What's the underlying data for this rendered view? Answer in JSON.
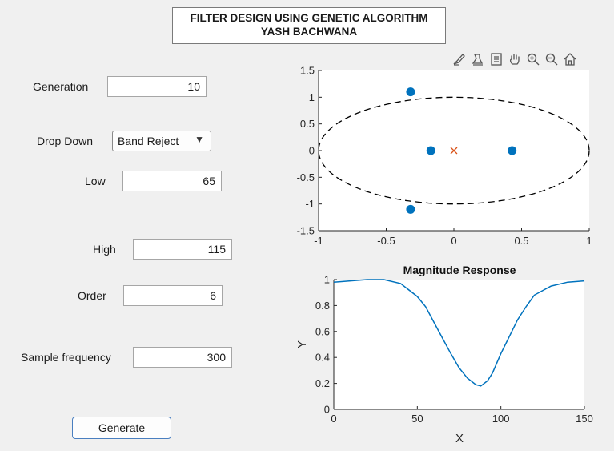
{
  "title": {
    "line1": "FILTER DESIGN USING GENETIC ALGORITHM",
    "line2": "YASH BACHWANA"
  },
  "form": {
    "generation_label": "Generation",
    "generation_value": "10",
    "dropdown_label": "Drop Down",
    "dropdown_value": "Band Reject",
    "low_label": "Low",
    "low_value": "65",
    "high_label": "High",
    "high_value": "115",
    "order_label": "Order",
    "order_value": "6",
    "fs_label": "Sample frequency",
    "fs_value": "300",
    "generate_label": "Generate"
  },
  "toolbar_icons": [
    "brush-icon",
    "data-tips-icon",
    "legend-icon",
    "pan-icon",
    "zoom-in-icon",
    "zoom-out-icon",
    "home-icon"
  ],
  "chart_data": [
    {
      "type": "scatter",
      "title": "",
      "xlabel": "",
      "ylabel": "",
      "xlim": [
        -1,
        1
      ],
      "ylim": [
        -1.5,
        1.5
      ],
      "xticks": [
        "-1",
        "-0.5",
        "0",
        "0.5",
        "1"
      ],
      "yticks": [
        "1.5",
        "1",
        "0.5",
        "0",
        "-0.5",
        "-1",
        "-1.5"
      ],
      "unit_circle": true,
      "series": [
        {
          "marker": "filled-circle",
          "color": "#0072bd",
          "points": [
            [
              -0.32,
              1.1
            ],
            [
              -0.17,
              0
            ],
            [
              0.43,
              0
            ],
            [
              -0.32,
              -1.1
            ]
          ]
        },
        {
          "marker": "x",
          "color": "#d95319",
          "points": [
            [
              0,
              0
            ]
          ]
        }
      ]
    },
    {
      "type": "line",
      "title": "Magnitude Response",
      "xlabel": "X",
      "ylabel": "Y",
      "xlim": [
        0,
        150
      ],
      "ylim": [
        0,
        1
      ],
      "xticks": [
        "0",
        "50",
        "100",
        "150"
      ],
      "yticks": [
        "1",
        "0.8",
        "0.6",
        "0.4",
        "0.2",
        "0"
      ],
      "color": "#0072bd",
      "x": [
        0,
        10,
        20,
        25,
        30,
        40,
        50,
        55,
        60,
        65,
        70,
        75,
        80,
        85,
        88,
        92,
        95,
        100,
        105,
        110,
        115,
        120,
        130,
        140,
        150
      ],
      "y": [
        0.98,
        0.99,
        1.0,
        1.0,
        1.0,
        0.97,
        0.87,
        0.79,
        0.67,
        0.55,
        0.43,
        0.32,
        0.24,
        0.19,
        0.18,
        0.22,
        0.28,
        0.43,
        0.56,
        0.69,
        0.79,
        0.88,
        0.95,
        0.98,
        0.99
      ]
    }
  ]
}
